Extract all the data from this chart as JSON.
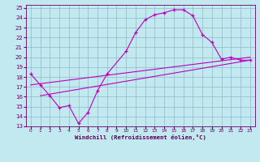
{
  "xlabel": "Windchill (Refroidissement éolien,°C)",
  "bg_color": "#c2e8f0",
  "grid_color": "#90b8c8",
  "line_color": "#bb00bb",
  "xlim": [
    -0.5,
    23.5
  ],
  "ylim": [
    13,
    25.3
  ],
  "xticks": [
    0,
    1,
    2,
    3,
    4,
    5,
    6,
    7,
    8,
    9,
    10,
    11,
    12,
    13,
    14,
    15,
    16,
    17,
    18,
    19,
    20,
    21,
    22,
    23
  ],
  "yticks": [
    13,
    14,
    15,
    16,
    17,
    18,
    19,
    20,
    21,
    22,
    23,
    24,
    25
  ],
  "curve_x": [
    0,
    1,
    2,
    3,
    4,
    5,
    6,
    7,
    8,
    10,
    11,
    12,
    13,
    14,
    15,
    16,
    17,
    18,
    19,
    20,
    21,
    22,
    23
  ],
  "curve_y": [
    18.3,
    17.2,
    16.1,
    14.9,
    15.1,
    13.3,
    14.4,
    16.6,
    18.3,
    20.6,
    22.5,
    23.8,
    24.3,
    24.5,
    24.8,
    24.8,
    24.2,
    22.3,
    21.5,
    19.8,
    20.0,
    19.7,
    19.7
  ],
  "line1_x": [
    0,
    23
  ],
  "line1_y": [
    17.2,
    20.0
  ],
  "line2_x": [
    1,
    23
  ],
  "line2_y": [
    16.1,
    19.7
  ]
}
